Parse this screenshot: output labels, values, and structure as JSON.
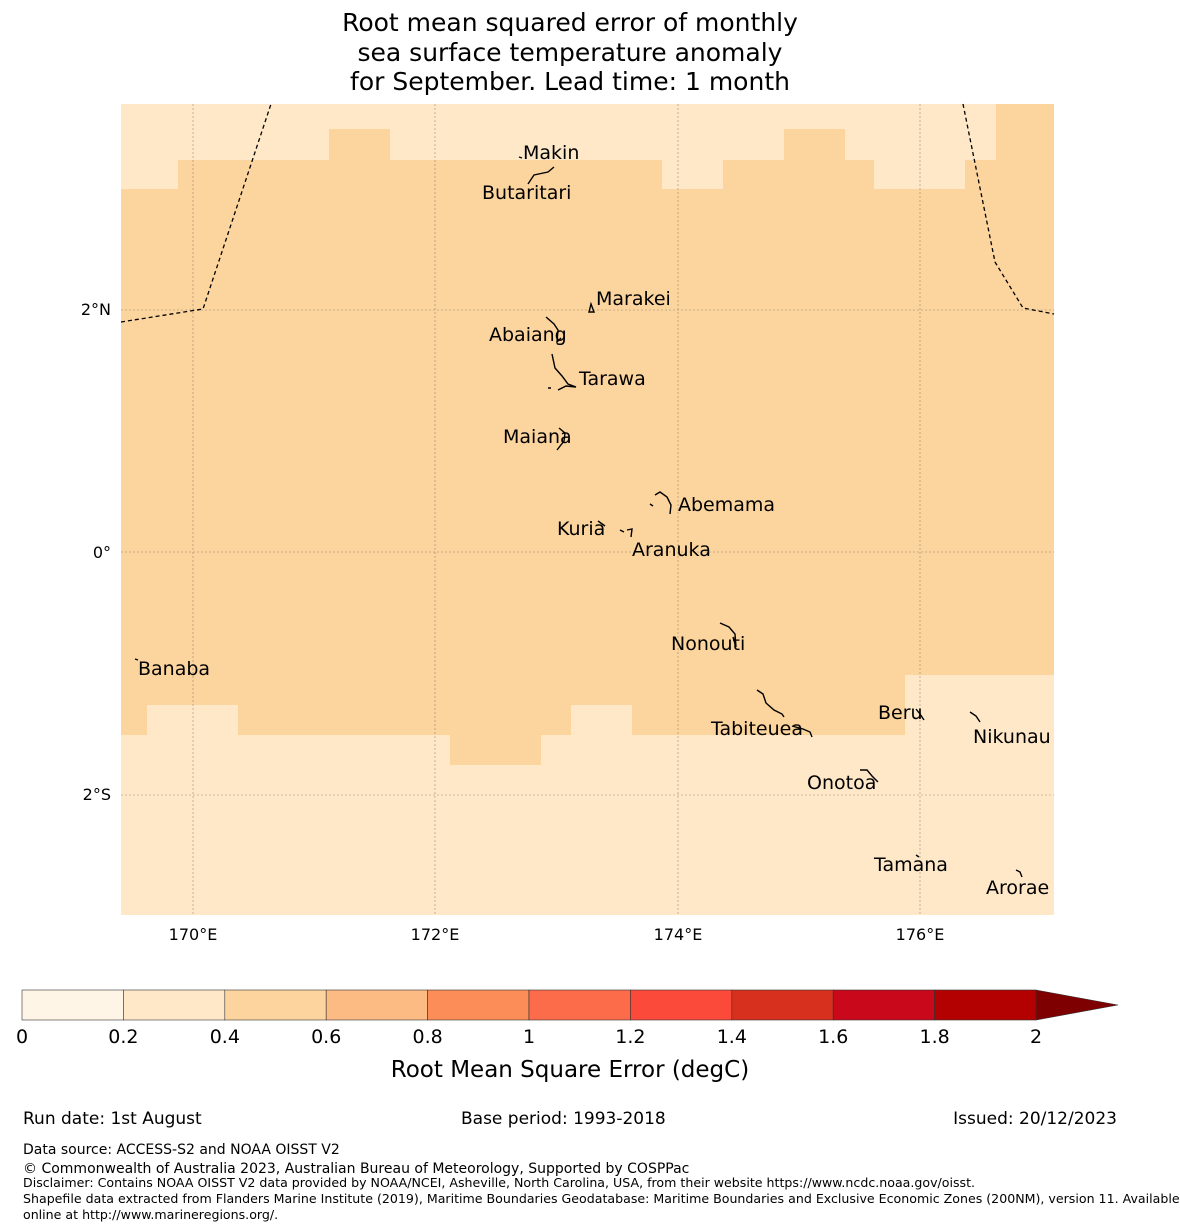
{
  "title": {
    "line1": "Root mean squared error of monthly",
    "line2": "sea surface temperature anomaly",
    "line3": "for September. Lead time: 1 month"
  },
  "map": {
    "lat_ticks": [
      "2°N",
      "0°",
      "2°S"
    ],
    "lon_ticks": [
      "170°E",
      "172°E",
      "174°E",
      "176°E"
    ],
    "places": [
      {
        "name": "Makin",
        "lon": 173.0,
        "lat": 3.1
      },
      {
        "name": "Butaritari",
        "lon": 172.8,
        "lat": 3.05
      },
      {
        "name": "Marakei",
        "lon": 173.3,
        "lat": 2.0
      },
      {
        "name": "Abaiang",
        "lon": 173.0,
        "lat": 1.8
      },
      {
        "name": "Tarawa",
        "lon": 173.1,
        "lat": 1.4
      },
      {
        "name": "Maiana",
        "lon": 173.0,
        "lat": 0.9
      },
      {
        "name": "Abemama",
        "lon": 173.9,
        "lat": 0.4
      },
      {
        "name": "Kuria",
        "lon": 173.4,
        "lat": 0.22
      },
      {
        "name": "Aranuka",
        "lon": 173.6,
        "lat": 0.17
      },
      {
        "name": "Nonouti",
        "lon": 174.4,
        "lat": -0.65
      },
      {
        "name": "Banaba",
        "lon": 169.5,
        "lat": -0.85
      },
      {
        "name": "Tabiteuea",
        "lon": 174.8,
        "lat": -1.3
      },
      {
        "name": "Beru",
        "lon": 176.0,
        "lat": -1.35
      },
      {
        "name": "Nikunau",
        "lon": 176.45,
        "lat": -1.35
      },
      {
        "name": "Onotoa",
        "lon": 175.55,
        "lat": -1.8
      },
      {
        "name": "Tamana",
        "lon": 176.0,
        "lat": -2.5
      },
      {
        "name": "Arorae",
        "lon": 176.8,
        "lat": -2.65
      }
    ],
    "rmse_field_note_levels": [
      "0.2-0.4",
      "0.4-0.6"
    ]
  },
  "colorbar": {
    "ticks": [
      "0",
      "0.2",
      "0.4",
      "0.6",
      "0.8",
      "1",
      "1.2",
      "1.4",
      "1.6",
      "1.8",
      "2"
    ],
    "colors": [
      "#fff5e6",
      "#ffe8c8",
      "#fdd49e",
      "#fdbb84",
      "#fc8d59",
      "#fc6b4a",
      "#fb4a3a",
      "#d7301f",
      "#c9081b",
      "#b30000",
      "#7f0000"
    ],
    "label": "Root Mean Square Error (degC)"
  },
  "footer": {
    "run_date": "Run date: 1st August",
    "base_period": "Base period: 1993-2018",
    "issued": "Issued: 20/12/2023",
    "data_source": "Data source: ACCESS-S2 and NOAA OISST V2",
    "copyright": "© Commonwealth of Australia 2023, Australian Bureau of Meteorology, Supported by COSPPac",
    "disclaimer1": "Disclaimer: Contains NOAA OISST V2 data provided by NOAA/NCEI, Asheville, North Carolina, USA, from their website https://www.ncdc.noaa.gov/oisst.",
    "disclaimer2": "Shapefile data extracted from Flanders Marine Institute (2019), Maritime Boundaries Geodatabase: Maritime Boundaries and Exclusive Economic Zones (200NM), version 11. Available",
    "disclaimer3": "online at http://www.marineregions.org/."
  }
}
